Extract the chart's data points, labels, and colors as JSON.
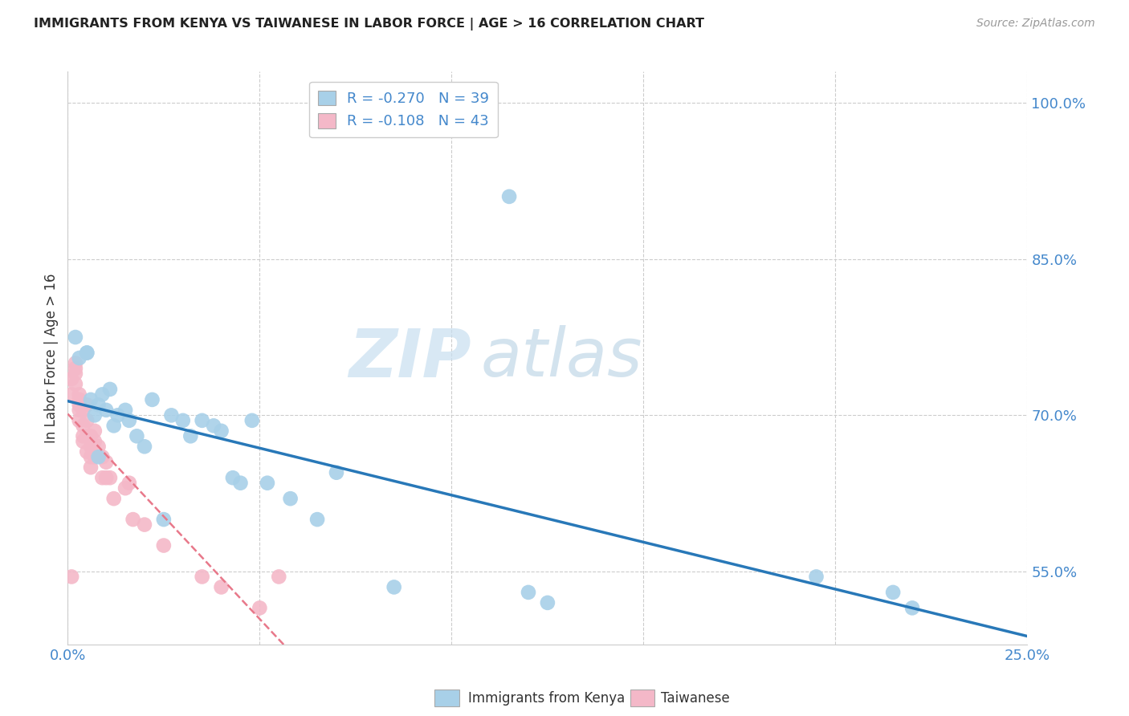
{
  "title": "IMMIGRANTS FROM KENYA VS TAIWANESE IN LABOR FORCE | AGE > 16 CORRELATION CHART",
  "source": "Source: ZipAtlas.com",
  "ylabel": "In Labor Force | Age > 16",
  "xlim": [
    0.0,
    0.25
  ],
  "ylim": [
    0.48,
    1.03
  ],
  "yticks": [
    0.55,
    0.7,
    0.85,
    1.0
  ],
  "ytick_labels": [
    "55.0%",
    "70.0%",
    "85.0%",
    "100.0%"
  ],
  "xticks": [
    0.0,
    0.05,
    0.1,
    0.15,
    0.2,
    0.25
  ],
  "xtick_labels": [
    "0.0%",
    "",
    "",
    "",
    "",
    "25.0%"
  ],
  "kenya_R": -0.27,
  "kenya_N": 39,
  "taiwan_R": -0.108,
  "taiwan_N": 43,
  "kenya_color": "#a8d0e8",
  "taiwan_color": "#f4b8c8",
  "kenya_line_color": "#2878b8",
  "taiwan_line_color": "#e8788a",
  "watermark_zip": "ZIP",
  "watermark_atlas": "atlas",
  "background_color": "#ffffff",
  "grid_color": "#cccccc",
  "kenya_x": [
    0.002,
    0.003,
    0.005,
    0.006,
    0.007,
    0.008,
    0.009,
    0.01,
    0.011,
    0.013,
    0.015,
    0.016,
    0.018,
    0.02,
    0.022,
    0.025,
    0.027,
    0.03,
    0.032,
    0.035,
    0.038,
    0.04,
    0.043,
    0.045,
    0.048,
    0.052,
    0.058,
    0.065,
    0.085,
    0.115,
    0.12,
    0.125,
    0.195,
    0.215,
    0.22,
    0.005,
    0.008,
    0.012,
    0.07
  ],
  "kenya_y": [
    0.775,
    0.755,
    0.76,
    0.715,
    0.7,
    0.71,
    0.72,
    0.705,
    0.725,
    0.7,
    0.705,
    0.695,
    0.68,
    0.67,
    0.715,
    0.6,
    0.7,
    0.695,
    0.68,
    0.695,
    0.69,
    0.685,
    0.64,
    0.635,
    0.695,
    0.635,
    0.62,
    0.6,
    0.535,
    0.91,
    0.53,
    0.52,
    0.545,
    0.53,
    0.515,
    0.76,
    0.66,
    0.69,
    0.645
  ],
  "taiwan_x": [
    0.001,
    0.001,
    0.002,
    0.002,
    0.002,
    0.002,
    0.003,
    0.003,
    0.003,
    0.003,
    0.003,
    0.004,
    0.004,
    0.004,
    0.004,
    0.005,
    0.005,
    0.005,
    0.005,
    0.006,
    0.006,
    0.006,
    0.006,
    0.007,
    0.007,
    0.007,
    0.008,
    0.009,
    0.009,
    0.01,
    0.01,
    0.011,
    0.012,
    0.015,
    0.016,
    0.017,
    0.02,
    0.025,
    0.035,
    0.04,
    0.05,
    0.055,
    0.001
  ],
  "taiwan_y": [
    0.735,
    0.72,
    0.745,
    0.75,
    0.74,
    0.73,
    0.72,
    0.715,
    0.71,
    0.705,
    0.695,
    0.705,
    0.69,
    0.68,
    0.675,
    0.71,
    0.695,
    0.68,
    0.665,
    0.67,
    0.68,
    0.66,
    0.65,
    0.685,
    0.675,
    0.66,
    0.67,
    0.66,
    0.64,
    0.655,
    0.64,
    0.64,
    0.62,
    0.63,
    0.635,
    0.6,
    0.595,
    0.575,
    0.545,
    0.535,
    0.515,
    0.545,
    0.545
  ]
}
